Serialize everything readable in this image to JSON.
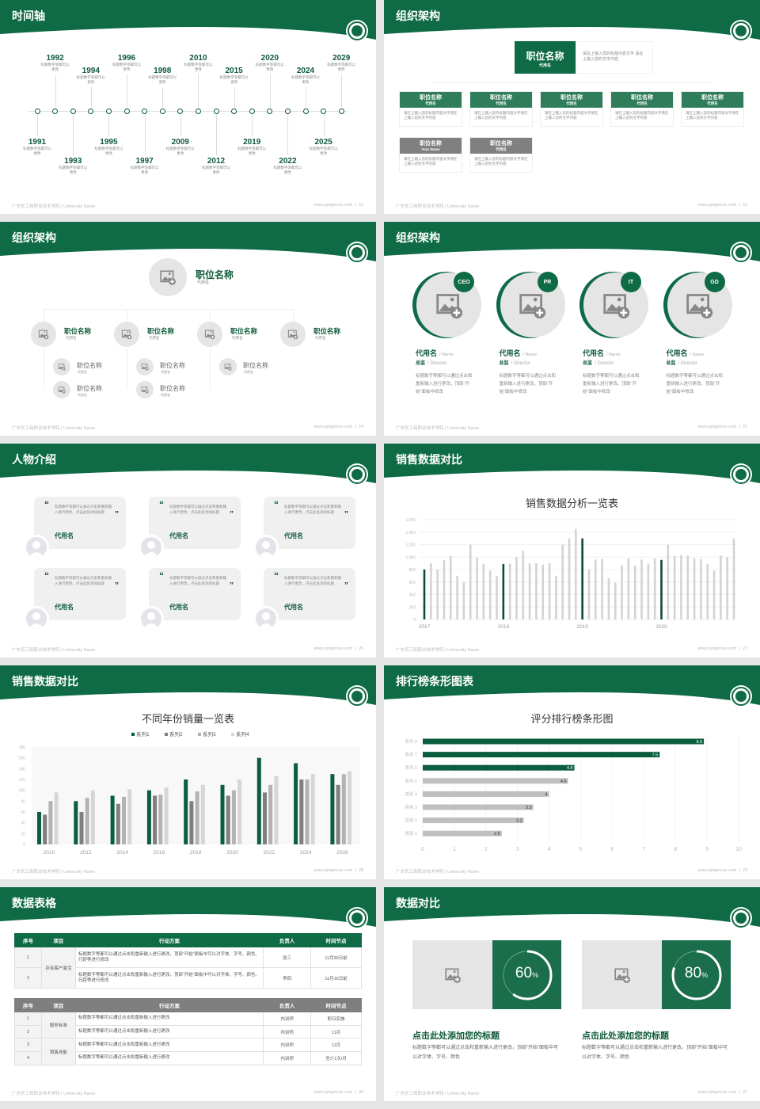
{
  "theme": {
    "primary": "#0e6b46",
    "dark": "#0b4d33",
    "gray": "#808080",
    "light_gray": "#cfcfcf"
  },
  "footer": {
    "left": "广东农工商职业技术学院 | University Name",
    "site": "www.pptgenius.com"
  },
  "slides": [
    {
      "type": "timeline",
      "title": "时间轴",
      "page": "22",
      "items": [
        {
          "year": "1991",
          "desc": "标题数字等都可以更改"
        },
        {
          "year": "1992",
          "desc": "标题数字等都可以更改"
        },
        {
          "year": "1993",
          "desc": "标题数字等都可以更改"
        },
        {
          "year": "1994",
          "desc": "标题数字等都可以更改"
        },
        {
          "year": "1995",
          "desc": "标题数字等都可以更改"
        },
        {
          "year": "1996",
          "desc": "标题数字等都可以更改"
        },
        {
          "year": "1997",
          "desc": "标题数字等都可以更改"
        },
        {
          "year": "1998",
          "desc": "标题数字等都可以更改"
        },
        {
          "year": "2009",
          "desc": "标题数字等都可以更改"
        },
        {
          "year": "2010",
          "desc": "标题数字等都可以更改"
        },
        {
          "year": "2012",
          "desc": "标题数字等都可以更改"
        },
        {
          "year": "2015",
          "desc": "标题数字等都可以更改"
        },
        {
          "year": "2019",
          "desc": "标题数字等都可以更改"
        },
        {
          "year": "2020",
          "desc": "标题数字等都可以更改"
        },
        {
          "year": "2022",
          "desc": "标题数字等都可以更改"
        },
        {
          "year": "2024",
          "desc": "标题数字等都可以更改"
        },
        {
          "year": "2025",
          "desc": "标题数字等都可以更改"
        },
        {
          "year": "2029",
          "desc": "标题数字等都可以更改"
        }
      ]
    },
    {
      "type": "org1",
      "title": "组织架构",
      "page": "23",
      "top": {
        "title": "职位名称",
        "sub": "代用名",
        "desc": "请在上输入您的标题内容文字 请在上输入您的文字内容"
      },
      "boxes": [
        {
          "title": "职位名称",
          "sub": "代用名",
          "desc": "请在上输入您的标题内容文字请在上输入您的文字内容",
          "color": "green"
        },
        {
          "title": "职位名称",
          "sub": "代用名",
          "desc": "请在上输入您的标题内容文字请在上输入您的文字内容",
          "color": "green"
        },
        {
          "title": "职位名称",
          "sub": "代用名",
          "desc": "请在上输入您的标题内容文字请在上输入您的文字内容",
          "color": "green"
        },
        {
          "title": "职位名称",
          "sub": "代用名",
          "desc": "请在上输入您的标题内容文字请在上输入您的文字内容",
          "color": "green"
        },
        {
          "title": "职位名称",
          "sub": "代用名",
          "desc": "请在上输入您的标题内容文字请在上输入您的文字内容",
          "color": "green"
        },
        {
          "title": "职位名称",
          "sub": "Your Name",
          "desc": "请在上输入您的标题内容文字请在上输入您的文字内容",
          "color": "gray"
        },
        {
          "title": "职位名称",
          "sub": "代用名",
          "desc": "请在上输入您的标题内容文字请在上输入您的文字内容",
          "color": "gray"
        }
      ]
    },
    {
      "type": "org2",
      "title": "组织架构",
      "page": "24",
      "top": {
        "title": "职位名称",
        "sub": "代用名"
      },
      "groups": [
        {
          "title": "职位名称",
          "sub": "代用名",
          "children": [
            {
              "title": "职位名称",
              "sub": "代用名"
            },
            {
              "title": "职位名称",
              "sub": "代用名"
            }
          ]
        },
        {
          "title": "职位名称",
          "sub": "代用名",
          "children": [
            {
              "title": "职位名称",
              "sub": "代用名"
            },
            {
              "title": "职位名称",
              "sub": "代用名"
            }
          ]
        },
        {
          "title": "职位名称",
          "sub": "代用名",
          "children": [
            {
              "title": "职位名称",
              "sub": "代用名"
            }
          ]
        },
        {
          "title": "职位名称",
          "sub": "代用名",
          "children": []
        }
      ]
    },
    {
      "type": "team",
      "title": "组织架构",
      "page": "25",
      "members": [
        {
          "badge": "CEO",
          "name": "代用名",
          "name_en": "/ Name",
          "role": "总监",
          "role_en": "/ Director",
          "desc": "标题数字等都可以通过点击和重新输入进行更改，顶部“开始”面板中修改"
        },
        {
          "badge": "PR",
          "name": "代用名",
          "name_en": "/ Name",
          "role": "总监",
          "role_en": "/ Director",
          "desc": "标题数字等都可以通过点击和重新输入进行更改，顶部“开始”面板中修改"
        },
        {
          "badge": "IT",
          "name": "代用名",
          "name_en": "/ Name",
          "role": "总监",
          "role_en": "/ Director",
          "desc": "标题数字等都可以通过点击和重新输入进行更改，顶部“开始”面板中修改"
        },
        {
          "badge": "GD",
          "name": "代用名",
          "name_en": "/ Name",
          "role": "总监",
          "role_en": "/ Director",
          "desc": "标题数字等都可以通过点击和重新输入进行更改，顶部“开始”面板中修改"
        }
      ]
    },
    {
      "type": "people",
      "title": "人物介绍",
      "page": "26",
      "cards": [
        {
          "quote": "标题数字等都可以通过点击和重新输入进行更改，点击此处添加标题",
          "name": "代用名"
        },
        {
          "quote": "标题数字等都可以通过点击和重新输入进行更改，点击此处添加标题",
          "name": "代用名"
        },
        {
          "quote": "标题数字等都可以通过点击和重新输入进行更改，点击此处添加标题",
          "name": "代用名"
        },
        {
          "quote": "标题数字等都可以通过点击和重新输入进行更改，点击此处添加标题",
          "name": "代用名"
        },
        {
          "quote": "标题数字等都可以通过点击和重新输入进行更改，点击此处添加标题",
          "name": "代用名"
        },
        {
          "quote": "标题数字等都可以通过点击和重新输入进行更改，点击此处添加标题",
          "name": "代用名"
        }
      ]
    },
    {
      "type": "chart",
      "title": "销售数据对比",
      "page": "27",
      "chart": 0
    },
    {
      "type": "chart",
      "title": "销售数据对比",
      "page": "28",
      "chart": 1
    },
    {
      "type": "chart",
      "title": "排行榜条形图表",
      "page": "29",
      "chart": 2
    },
    {
      "type": "tables",
      "title": "数据表格",
      "page": "30",
      "headers": [
        "序号",
        "项目",
        "行动方案",
        "负责人",
        "时间节点"
      ],
      "table1": {
        "groups": [
          {
            "item": "存有客户激活",
            "rows": [
              {
                "no": "1",
                "plan": "标题数字等都可以通过点击和重新输入进行更改，顶部“开始”面板中可以对字体、字号、颜色、行距等进行修改",
                "owner": "张三",
                "time": "11月30日前"
              },
              {
                "no": "2",
                "plan": "标题数字等都可以通过点击和重新输入进行更改，顶部“开始”面板中可以对字体、字号、颜色、行距等进行修改",
                "owner": "李四",
                "time": "11月15日前"
              }
            ]
          }
        ]
      },
      "table2": {
        "groups": [
          {
            "item": "服务标准",
            "rows": [
              {
                "no": "1",
                "plan": "标题数字等都可以通过点击和重新输入进行更改",
                "owner": "内训师",
                "time": "即日实施"
              },
              {
                "no": "2",
                "plan": "标题数字等都可以通过点击和重新输入进行更改",
                "owner": "内训师",
                "time": "11月"
              }
            ]
          },
          {
            "item": "销售技能",
            "rows": [
              {
                "no": "3",
                "plan": "标题数字等都可以通过点击和重新输入进行更改",
                "owner": "内训师",
                "time": "11月"
              },
              {
                "no": "4",
                "plan": "标题数字等都可以通过点击和重新输入进行更改",
                "owner": "内训师",
                "time": "至少1次/月"
              }
            ]
          }
        ]
      }
    },
    {
      "type": "compare",
      "title": "数据对比",
      "page": "31",
      "items": [
        {
          "value": 60,
          "num": "60",
          "unit": "%",
          "title": "点击此处添加您的标题",
          "desc": "标题数字等都可以通过点击和重新输入进行更改，顶部“开始”面板中可以对字体、字号、颜色"
        },
        {
          "value": 80,
          "num": "80",
          "unit": "%",
          "title": "点击此处添加您的标题",
          "desc": "标题数字等都可以通过点击和重新输入进行更改，顶部“开始”面板中可以对字体、字号、颜色"
        }
      ]
    }
  ],
  "chart_data": [
    {
      "type": "bar",
      "title": "销售数据分析一览表",
      "ylim": [
        0,
        1600
      ],
      "yticks": [
        "0",
        "200",
        "400",
        "600",
        "800",
        "1,000",
        "1,200",
        "1,400",
        "1,600"
      ],
      "xticks": [
        "2017",
        "2018",
        "2019",
        "2020"
      ],
      "highlight_every": 12,
      "values": [
        800,
        900,
        800,
        950,
        1020,
        700,
        600,
        1200,
        990,
        895,
        780,
        700,
        890,
        895,
        1000,
        1100,
        900,
        900,
        880,
        900,
        700,
        1200,
        1300,
        1450,
        1300,
        800,
        960,
        970,
        660,
        590,
        870,
        980,
        860,
        960,
        895,
        980,
        955,
        1200,
        1020,
        1030,
        1020,
        980,
        965,
        895,
        780,
        1020,
        1000,
        1300
      ],
      "grid": true
    },
    {
      "type": "bar",
      "title": "不同年份销量一览表",
      "ylim": [
        0,
        180
      ],
      "yticks": [
        "0",
        "20",
        "40",
        "60",
        "80",
        "100",
        "120",
        "140",
        "160",
        "180"
      ],
      "categories": [
        "2010",
        "2012",
        "2014",
        "2016",
        "2018",
        "2020",
        "2022",
        "2024",
        "2026"
      ],
      "legend": "top",
      "series": [
        {
          "name": "系列1",
          "color": "#0b5e3d",
          "values": [
            60,
            80,
            90,
            100,
            120,
            110,
            160,
            150,
            130
          ]
        },
        {
          "name": "系列2",
          "color": "#7f7f7f",
          "values": [
            55,
            60,
            75,
            90,
            80,
            90,
            96,
            120,
            110
          ]
        },
        {
          "name": "系列3",
          "color": "#b3b3b3",
          "values": [
            80,
            86,
            88,
            92,
            98,
            100,
            110,
            120,
            130
          ]
        },
        {
          "name": "系列4",
          "color": "#d6d6d6",
          "values": [
            96,
            100,
            102,
            105,
            110,
            120,
            126,
            130,
            135
          ]
        }
      ]
    },
    {
      "type": "bar",
      "orientation": "horizontal",
      "title": "评分排行榜条形图",
      "xlim": [
        0,
        10
      ],
      "xticks": [
        "0",
        "1",
        "2",
        "3",
        "4",
        "5",
        "6",
        "7",
        "8",
        "9",
        "10"
      ],
      "categories": [
        "系列 8",
        "系列 7",
        "系列 6",
        "系列 5",
        "类别 4",
        "类别 3",
        "类别 2",
        "类别 1"
      ],
      "values": [
        8.9,
        7.5,
        4.8,
        4.6,
        4,
        3.5,
        3.2,
        2.5
      ],
      "labels": [
        "8.9",
        "7.5",
        "4.8",
        "4.6",
        "4",
        "3.5",
        "3.2",
        "2.5"
      ],
      "highlighted": [
        "系列 8",
        "系列 7",
        "系列 6"
      ]
    }
  ]
}
